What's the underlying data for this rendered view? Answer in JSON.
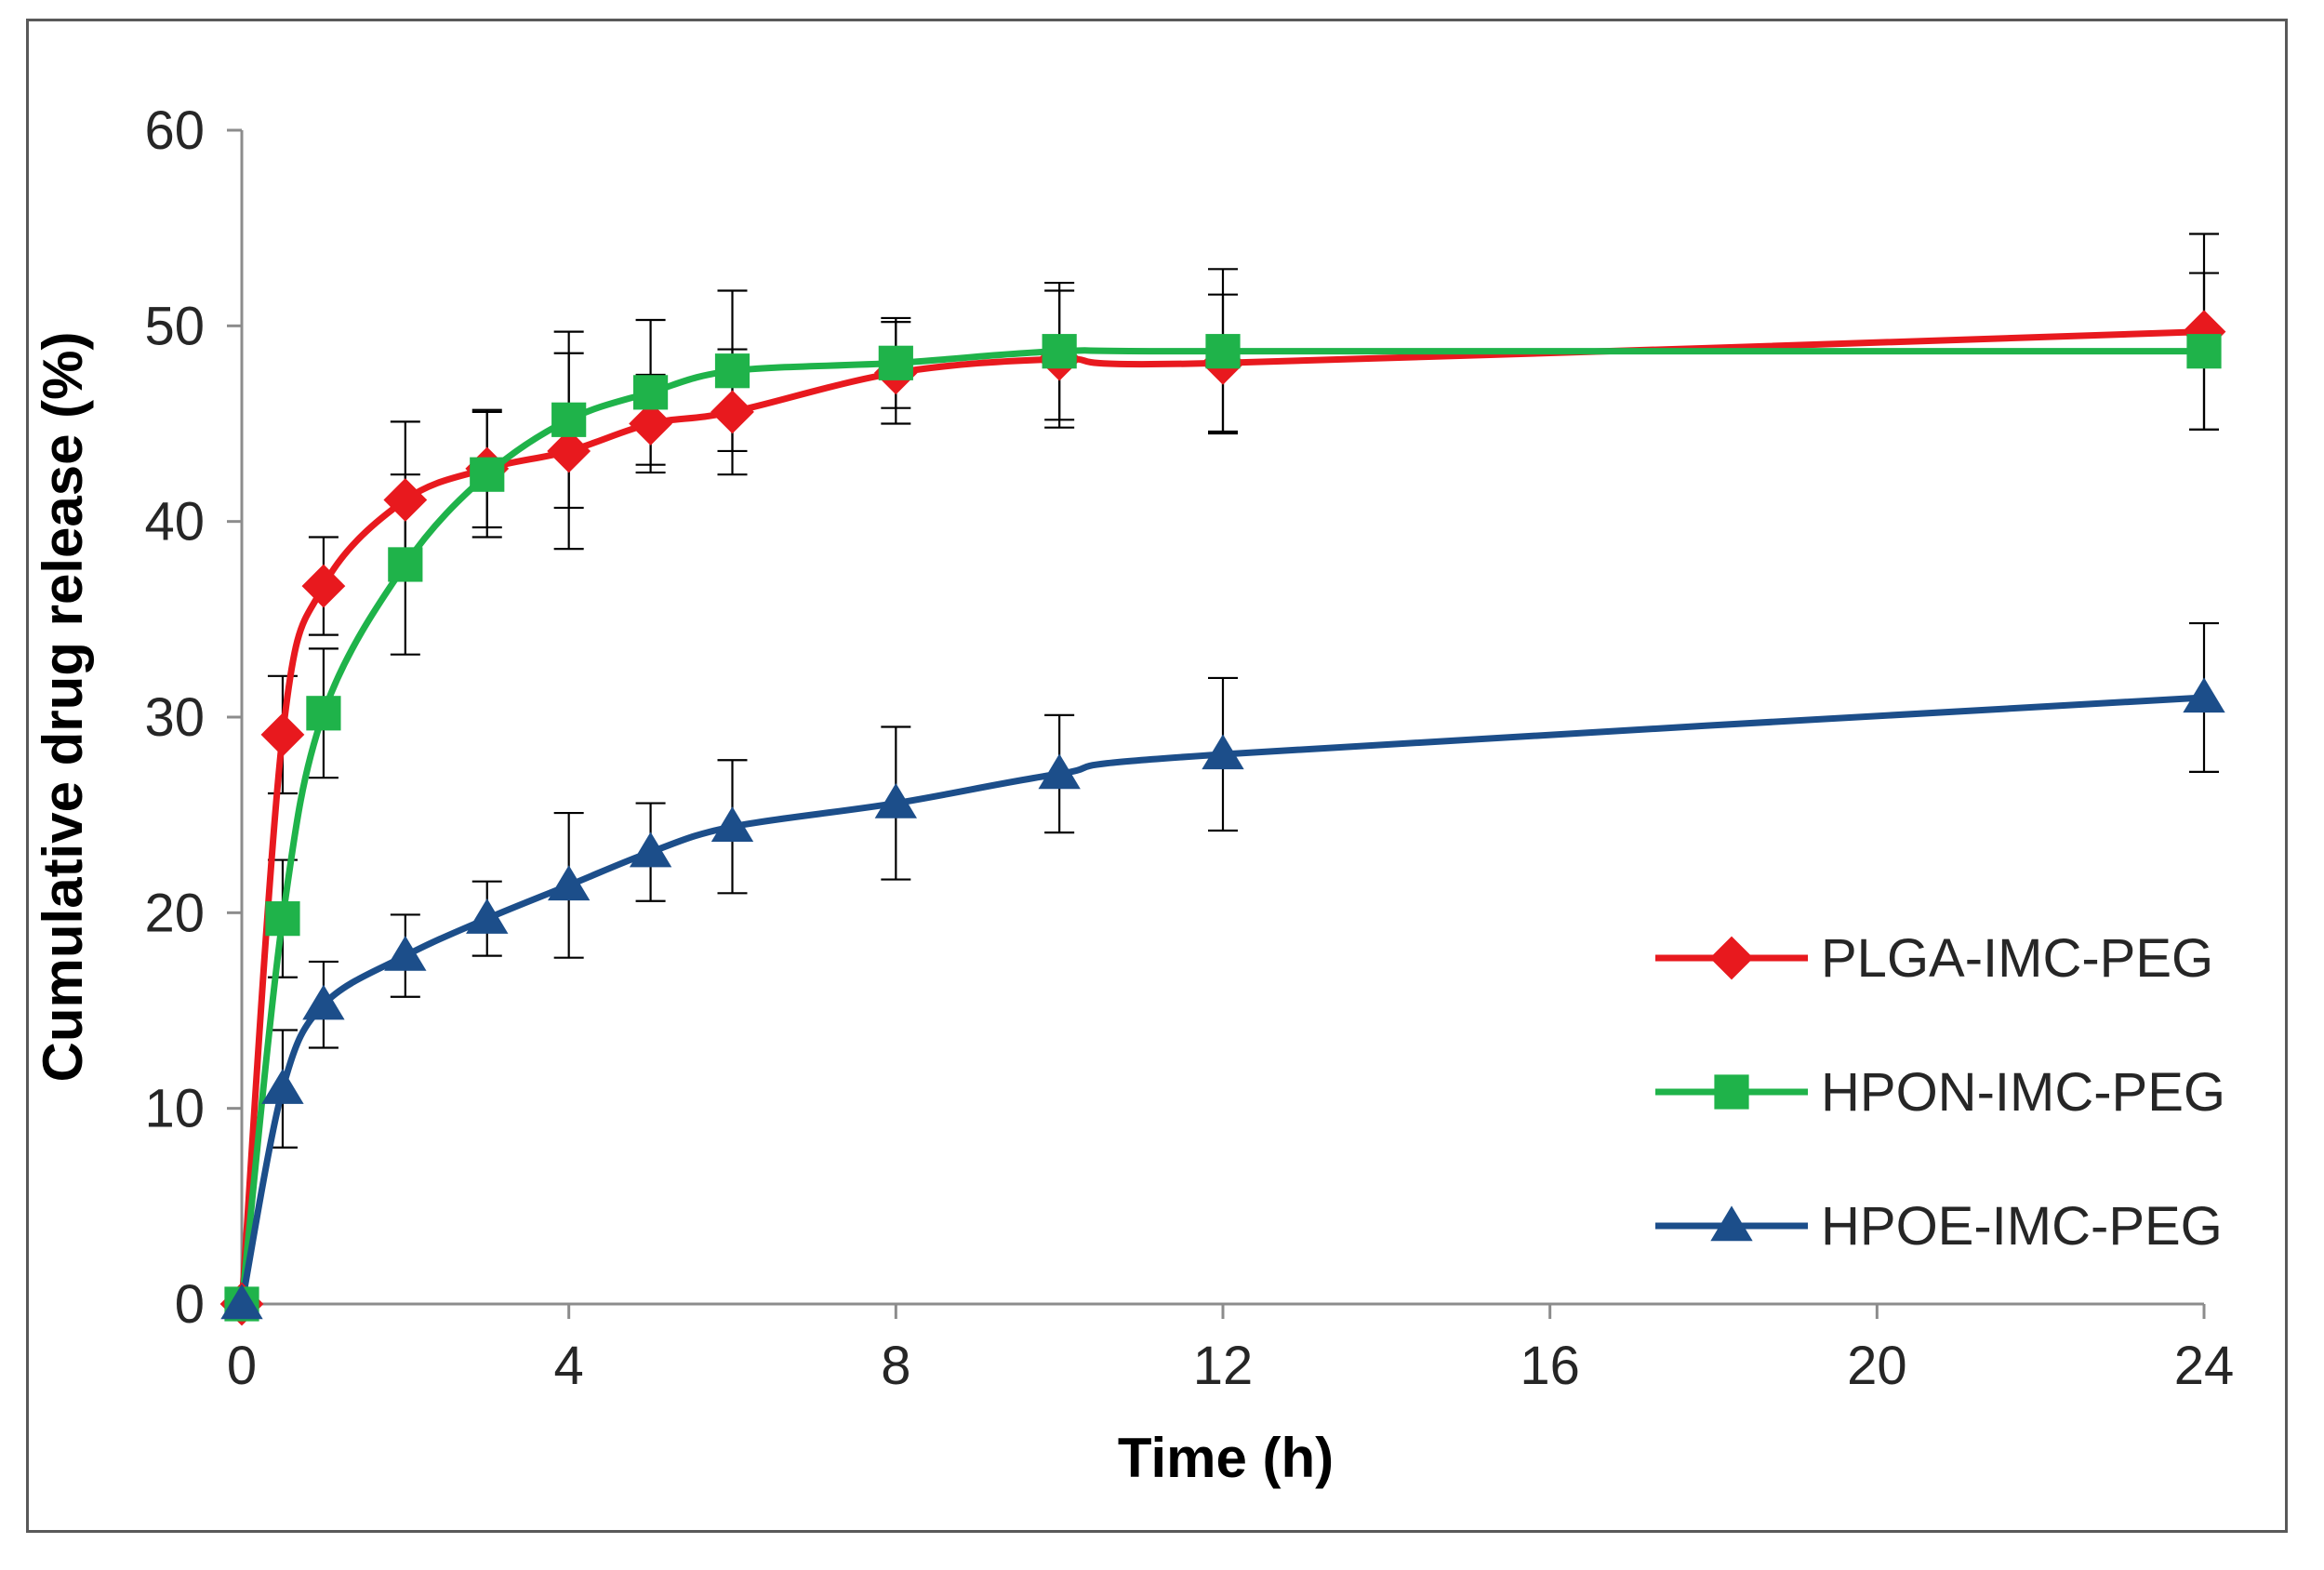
{
  "chart_data": {
    "type": "line",
    "title": "",
    "xlabel": "Time (h)",
    "ylabel": "Cumulative drug release (%)",
    "xlim": [
      0,
      24
    ],
    "ylim": [
      0,
      60
    ],
    "x_ticks": [
      0,
      4,
      8,
      12,
      16,
      20,
      24
    ],
    "y_ticks": [
      0,
      10,
      20,
      30,
      40,
      50,
      60
    ],
    "grid": false,
    "legend_position": "lower-right",
    "x": [
      0,
      0.5,
      1,
      2,
      3,
      4,
      5,
      6,
      8,
      10,
      12,
      24
    ],
    "series": [
      {
        "name": "PLGA-IMC-PEG",
        "color": "#e8191e",
        "marker": "diamond",
        "values": [
          0,
          29.1,
          36.7,
          41.1,
          42.7,
          43.6,
          45.0,
          45.6,
          47.6,
          48.3,
          48.1,
          49.7
        ],
        "errors": [
          0,
          3.0,
          2.5,
          4.0,
          3.0,
          5.0,
          2.5,
          3.2,
          2.6,
          3.5,
          3.5,
          5.0
        ]
      },
      {
        "name": "HPON-IMC-PEG",
        "color": "#1fb34a",
        "marker": "square",
        "values": [
          0,
          19.7,
          30.2,
          37.8,
          42.4,
          45.2,
          46.6,
          47.7,
          48.1,
          48.7,
          48.7,
          48.7
        ],
        "errors": [
          0,
          3.0,
          3.3,
          4.6,
          3.2,
          4.5,
          3.7,
          4.1,
          2.3,
          3.5,
          4.2,
          4.0
        ]
      },
      {
        "name": "HPOE-IMC-PEG",
        "color": "#1c4e8a",
        "marker": "triangle",
        "values": [
          0,
          11.0,
          15.3,
          17.8,
          19.7,
          21.4,
          23.1,
          24.4,
          25.6,
          27.1,
          28.1,
          31.0
        ],
        "errors": [
          0,
          3.0,
          2.2,
          2.1,
          1.9,
          3.7,
          2.5,
          3.4,
          3.9,
          3.0,
          3.9,
          3.8
        ]
      }
    ]
  }
}
